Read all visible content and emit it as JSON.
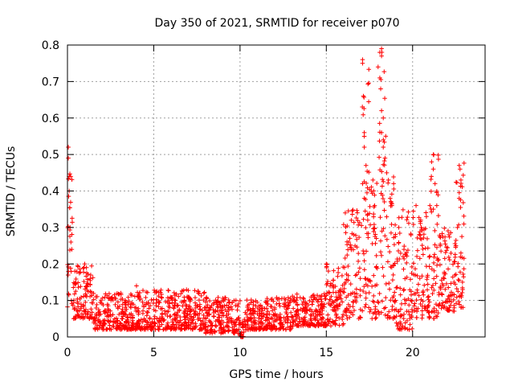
{
  "chart_data": {
    "type": "scatter",
    "title": "Day 350 of 2021, SRMTID for receiver p070",
    "xlabel": "GPS time / hours",
    "ylabel": "SRMTID / TECUs",
    "xlim": [
      0,
      24.2
    ],
    "ylim": [
      0,
      0.8
    ],
    "xticks": [
      0,
      5,
      10,
      15,
      20
    ],
    "yticks": [
      0,
      0.1,
      0.2,
      0.3,
      0.4,
      0.5,
      0.6,
      0.7,
      0.8
    ],
    "grid": true,
    "marker": "+",
    "color": "#ff0000",
    "envelope": [
      {
        "x_start": 0.0,
        "x_end": 0.3,
        "low": 0.08,
        "high": 0.52
      },
      {
        "x_start": 0.3,
        "x_end": 1.5,
        "low": 0.05,
        "high": 0.2
      },
      {
        "x_start": 1.5,
        "x_end": 4.0,
        "low": 0.02,
        "high": 0.12
      },
      {
        "x_start": 4.0,
        "x_end": 8.0,
        "low": 0.02,
        "high": 0.13
      },
      {
        "x_start": 8.0,
        "x_end": 10.0,
        "low": 0.01,
        "high": 0.11
      },
      {
        "x_start": 10.0,
        "x_end": 10.3,
        "low": 0.0,
        "high": 0.06
      },
      {
        "x_start": 10.3,
        "x_end": 13.0,
        "low": 0.02,
        "high": 0.11
      },
      {
        "x_start": 13.0,
        "x_end": 15.0,
        "low": 0.03,
        "high": 0.12
      },
      {
        "x_start": 15.0,
        "x_end": 16.0,
        "low": 0.03,
        "high": 0.2
      },
      {
        "x_start": 16.0,
        "x_end": 17.0,
        "low": 0.05,
        "high": 0.35
      },
      {
        "x_start": 17.0,
        "x_end": 17.5,
        "low": 0.07,
        "high": 0.76
      },
      {
        "x_start": 17.5,
        "x_end": 18.0,
        "low": 0.05,
        "high": 0.45
      },
      {
        "x_start": 18.0,
        "x_end": 18.5,
        "low": 0.06,
        "high": 0.79
      },
      {
        "x_start": 18.5,
        "x_end": 19.0,
        "low": 0.05,
        "high": 0.45
      },
      {
        "x_start": 19.0,
        "x_end": 20.0,
        "low": 0.02,
        "high": 0.35
      },
      {
        "x_start": 20.0,
        "x_end": 21.0,
        "low": 0.05,
        "high": 0.35
      },
      {
        "x_start": 21.0,
        "x_end": 21.5,
        "low": 0.05,
        "high": 0.5
      },
      {
        "x_start": 21.5,
        "x_end": 22.5,
        "low": 0.07,
        "high": 0.3
      },
      {
        "x_start": 22.5,
        "x_end": 23.0,
        "low": 0.08,
        "high": 0.48
      }
    ],
    "features": [
      {
        "x": 0.05,
        "y": 0.52
      },
      {
        "x": 0.05,
        "y": 0.49
      },
      {
        "x": 0.1,
        "y": 0.44
      },
      {
        "x": 0.1,
        "y": 0.4
      },
      {
        "x": 0.15,
        "y": 0.3
      },
      {
        "x": 0.2,
        "y": 0.26
      },
      {
        "x": 0.25,
        "y": 0.24
      },
      {
        "x": 1.0,
        "y": 0.2
      },
      {
        "x": 1.1,
        "y": 0.19
      },
      {
        "x": 4.0,
        "y": 0.14
      },
      {
        "x": 10.1,
        "y": 0.0
      },
      {
        "x": 15.0,
        "y": 0.2
      },
      {
        "x": 16.1,
        "y": 0.34
      },
      {
        "x": 16.3,
        "y": 0.26
      },
      {
        "x": 17.1,
        "y": 0.76
      },
      {
        "x": 17.1,
        "y": 0.75
      },
      {
        "x": 17.15,
        "y": 0.66
      },
      {
        "x": 17.2,
        "y": 0.56
      },
      {
        "x": 17.2,
        "y": 0.55
      },
      {
        "x": 17.2,
        "y": 0.52
      },
      {
        "x": 17.3,
        "y": 0.47
      },
      {
        "x": 17.1,
        "y": 0.42
      },
      {
        "x": 17.2,
        "y": 0.38
      },
      {
        "x": 17.4,
        "y": 0.32
      },
      {
        "x": 17.6,
        "y": 0.4
      },
      {
        "x": 17.7,
        "y": 0.43
      },
      {
        "x": 17.8,
        "y": 0.36
      },
      {
        "x": 17.9,
        "y": 0.27
      },
      {
        "x": 18.0,
        "y": 0.74
      },
      {
        "x": 18.1,
        "y": 0.78
      },
      {
        "x": 18.2,
        "y": 0.79
      },
      {
        "x": 18.2,
        "y": 0.77
      },
      {
        "x": 18.1,
        "y": 0.71
      },
      {
        "x": 18.15,
        "y": 0.68
      },
      {
        "x": 18.2,
        "y": 0.62
      },
      {
        "x": 18.3,
        "y": 0.6
      },
      {
        "x": 18.2,
        "y": 0.56
      },
      {
        "x": 18.3,
        "y": 0.52
      },
      {
        "x": 18.4,
        "y": 0.49
      },
      {
        "x": 18.5,
        "y": 0.45
      },
      {
        "x": 18.6,
        "y": 0.43
      },
      {
        "x": 18.7,
        "y": 0.38
      },
      {
        "x": 18.8,
        "y": 0.36
      },
      {
        "x": 18.9,
        "y": 0.42
      },
      {
        "x": 19.2,
        "y": 0.3
      },
      {
        "x": 19.5,
        "y": 0.24
      },
      {
        "x": 19.8,
        "y": 0.02
      },
      {
        "x": 20.2,
        "y": 0.36
      },
      {
        "x": 20.5,
        "y": 0.3
      },
      {
        "x": 20.8,
        "y": 0.33
      },
      {
        "x": 21.0,
        "y": 0.36
      },
      {
        "x": 21.1,
        "y": 0.48
      },
      {
        "x": 21.2,
        "y": 0.5
      },
      {
        "x": 21.2,
        "y": 0.46
      },
      {
        "x": 21.3,
        "y": 0.42
      },
      {
        "x": 21.4,
        "y": 0.36
      },
      {
        "x": 21.6,
        "y": 0.25
      },
      {
        "x": 22.1,
        "y": 0.28
      },
      {
        "x": 22.5,
        "y": 0.25
      },
      {
        "x": 22.6,
        "y": 0.3
      },
      {
        "x": 22.7,
        "y": 0.38
      },
      {
        "x": 22.7,
        "y": 0.47
      },
      {
        "x": 22.75,
        "y": 0.46
      },
      {
        "x": 22.8,
        "y": 0.43
      },
      {
        "x": 22.8,
        "y": 0.23
      },
      {
        "x": 22.9,
        "y": 0.13
      }
    ]
  }
}
